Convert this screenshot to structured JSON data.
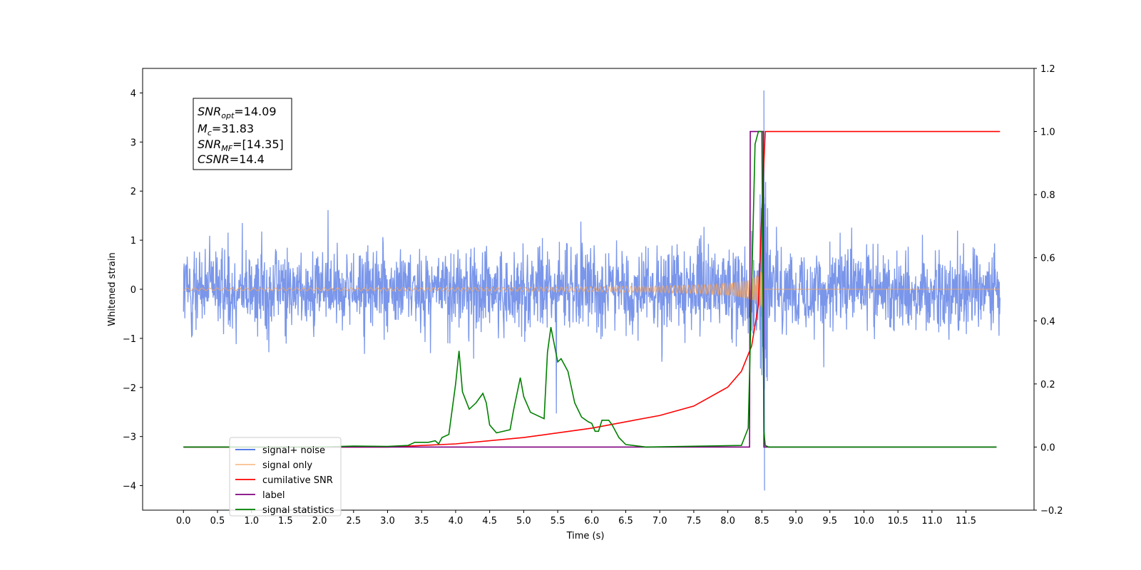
{
  "chart_data": {
    "type": "line",
    "xlabel": "Time (s)",
    "ylabel": "Whitened strain",
    "xlim": [
      -0.6,
      12.5
    ],
    "ylim": [
      -4.5,
      4.5
    ],
    "y2lim": [
      -0.2,
      1.2
    ],
    "x_ticks": [
      "0.0",
      "0.5",
      "1.0",
      "1.5",
      "2.0",
      "2.5",
      "3.0",
      "3.5",
      "4.0",
      "4.5",
      "5.0",
      "5.5",
      "6.0",
      "6.5",
      "7.0",
      "7.5",
      "8.0",
      "8.5",
      "9.0",
      "9.5",
      "10.0",
      "10.5",
      "11.0",
      "11.5"
    ],
    "y_ticks": [
      "4",
      "3",
      "2",
      "1",
      "0",
      "−1",
      "−2",
      "−3",
      "−4"
    ],
    "y2_ticks": [
      "1.2",
      "1.0",
      "0.8",
      "0.6",
      "0.4",
      "0.2",
      "0.0",
      "−0.2"
    ],
    "annotation": {
      "snr_opt": "=14.09",
      "mc": "=31.83",
      "snr_mf": "=[14.35]",
      "csnr": "=14.4"
    },
    "legend": {
      "position": "lower-left",
      "entries": [
        {
          "label": "signal+ noise",
          "color": "#4169e1"
        },
        {
          "label": "signal only",
          "color": "#f4a460"
        },
        {
          "label": "cumilative SNR",
          "color": "#ff0000"
        },
        {
          "label": "label",
          "color": "#800080"
        },
        {
          "label": "signal statistics",
          "color": "#008000"
        }
      ]
    },
    "series": [
      {
        "name": "signal+ noise",
        "axis": "left",
        "description_values": {
          "t_start": 0.0,
          "t_end": 12.0,
          "typical_range": [
            -2.0,
            2.0
          ],
          "peak_max": 4.05,
          "peak_min": -4.1,
          "peak_time": 8.53
        }
      },
      {
        "name": "signal only",
        "axis": "left",
        "chirp": {
          "t_start": 0.0,
          "t_merger": 8.52,
          "t_end": 12.0,
          "peak_amplitude": 1.5
        }
      },
      {
        "name": "cumilative SNR",
        "axis": "right",
        "points": [
          [
            0.0,
            0.0
          ],
          [
            3.0,
            0.0
          ],
          [
            4.0,
            0.01
          ],
          [
            5.0,
            0.03
          ],
          [
            6.0,
            0.06
          ],
          [
            7.0,
            0.1
          ],
          [
            7.5,
            0.13
          ],
          [
            8.0,
            0.19
          ],
          [
            8.2,
            0.24
          ],
          [
            8.35,
            0.32
          ],
          [
            8.45,
            0.45
          ],
          [
            8.5,
            0.75
          ],
          [
            8.55,
            1.0
          ],
          [
            12.0,
            1.0
          ]
        ]
      },
      {
        "name": "label",
        "axis": "right",
        "points": [
          [
            0.0,
            0.0
          ],
          [
            8.32,
            0.0
          ],
          [
            8.33,
            1.0
          ],
          [
            8.52,
            1.0
          ],
          [
            8.53,
            0.0
          ],
          [
            11.95,
            0.0
          ]
        ]
      },
      {
        "name": "signal statistics",
        "axis": "right",
        "points": [
          [
            0.0,
            0.0
          ],
          [
            2.0,
            0.0
          ],
          [
            2.5,
            0.003
          ],
          [
            3.0,
            0.002
          ],
          [
            3.3,
            0.005
          ],
          [
            3.4,
            0.015
          ],
          [
            3.6,
            0.015
          ],
          [
            3.7,
            0.02
          ],
          [
            3.75,
            0.01
          ],
          [
            3.8,
            0.03
          ],
          [
            3.9,
            0.04
          ],
          [
            4.0,
            0.2
          ],
          [
            4.05,
            0.305
          ],
          [
            4.1,
            0.175
          ],
          [
            4.2,
            0.12
          ],
          [
            4.3,
            0.14
          ],
          [
            4.4,
            0.17
          ],
          [
            4.45,
            0.14
          ],
          [
            4.5,
            0.07
          ],
          [
            4.6,
            0.045
          ],
          [
            4.8,
            0.055
          ],
          [
            4.85,
            0.115
          ],
          [
            4.95,
            0.22
          ],
          [
            5.0,
            0.16
          ],
          [
            5.1,
            0.11
          ],
          [
            5.3,
            0.09
          ],
          [
            5.35,
            0.3
          ],
          [
            5.4,
            0.38
          ],
          [
            5.5,
            0.27
          ],
          [
            5.55,
            0.28
          ],
          [
            5.65,
            0.24
          ],
          [
            5.75,
            0.14
          ],
          [
            5.85,
            0.095
          ],
          [
            5.95,
            0.08
          ],
          [
            6.0,
            0.075
          ],
          [
            6.05,
            0.05
          ],
          [
            6.1,
            0.05
          ],
          [
            6.15,
            0.085
          ],
          [
            6.25,
            0.085
          ],
          [
            6.3,
            0.07
          ],
          [
            6.4,
            0.03
          ],
          [
            6.5,
            0.008
          ],
          [
            6.8,
            0.0
          ],
          [
            8.2,
            0.005
          ],
          [
            8.3,
            0.06
          ],
          [
            8.35,
            0.5
          ],
          [
            8.4,
            0.96
          ],
          [
            8.45,
            1.0
          ],
          [
            8.5,
            1.0
          ],
          [
            8.53,
            0.05
          ],
          [
            8.55,
            0.005
          ],
          [
            8.6,
            0.0
          ],
          [
            11.95,
            0.0
          ]
        ]
      }
    ]
  }
}
